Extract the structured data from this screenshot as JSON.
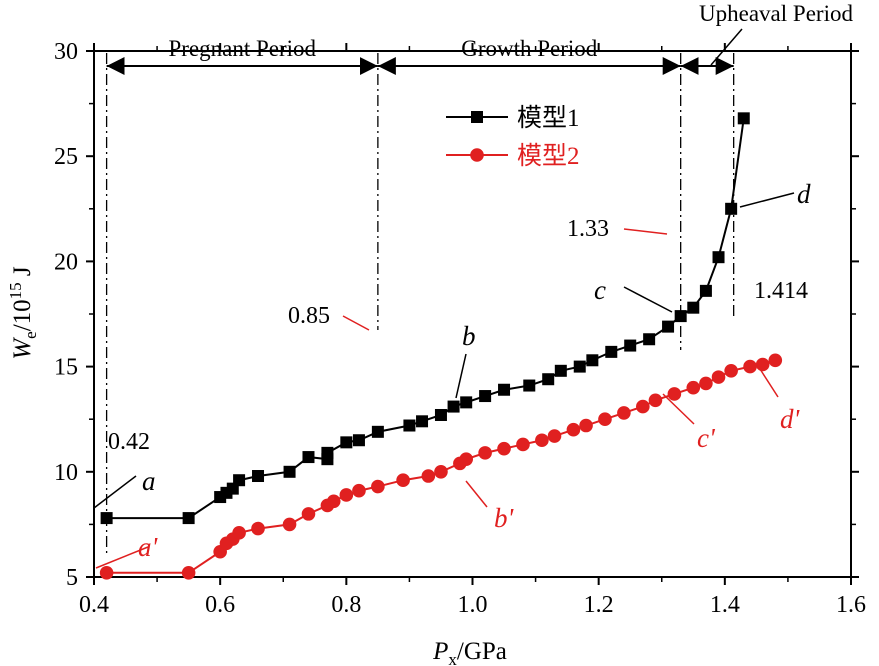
{
  "chart_data": {
    "type": "line",
    "xlabel": {
      "main": "P",
      "sub": "x",
      "rest": "/GPa"
    },
    "ylabel": {
      "main": "W",
      "sub": "e",
      "mid": "/10",
      "sup": "15",
      "rest": " J"
    },
    "xlim": [
      0.4,
      1.6
    ],
    "ylim": [
      5,
      30
    ],
    "x_ticks": [
      0.4,
      0.6,
      0.8,
      1.0,
      1.2,
      1.4,
      1.6
    ],
    "x_tick_labels": [
      "0.4",
      "0.6",
      "0.8",
      "1.0",
      "1.2",
      "1.4",
      "1.6"
    ],
    "y_ticks": [
      5,
      10,
      15,
      20,
      25,
      30
    ],
    "y_tick_labels": [
      "5",
      "10",
      "15",
      "20",
      "25",
      "30"
    ],
    "series": [
      {
        "name": "模型1",
        "color": "#000000",
        "marker": "square",
        "x": [
          0.42,
          0.55,
          0.6,
          0.61,
          0.62,
          0.63,
          0.66,
          0.71,
          0.74,
          0.77,
          0.77,
          0.8,
          0.82,
          0.85,
          0.9,
          0.92,
          0.95,
          0.97,
          0.99,
          1.02,
          1.05,
          1.09,
          1.12,
          1.14,
          1.17,
          1.19,
          1.22,
          1.25,
          1.28,
          1.31,
          1.33,
          1.35,
          1.37,
          1.39,
          1.41,
          1.43
        ],
        "y": [
          7.8,
          7.8,
          8.8,
          9.0,
          9.2,
          9.6,
          9.8,
          10.0,
          10.7,
          10.6,
          10.9,
          11.4,
          11.5,
          11.9,
          12.2,
          12.4,
          12.7,
          13.1,
          13.3,
          13.6,
          13.9,
          14.1,
          14.4,
          14.8,
          15.0,
          15.3,
          15.7,
          16.0,
          16.3,
          16.9,
          17.4,
          17.8,
          18.6,
          20.2,
          22.5,
          26.8
        ]
      },
      {
        "name": "模型2",
        "color": "#e02020",
        "marker": "circle",
        "x": [
          0.42,
          0.55,
          0.6,
          0.61,
          0.62,
          0.63,
          0.66,
          0.71,
          0.74,
          0.77,
          0.78,
          0.8,
          0.82,
          0.85,
          0.89,
          0.93,
          0.95,
          0.98,
          0.99,
          1.02,
          1.05,
          1.08,
          1.11,
          1.13,
          1.16,
          1.18,
          1.21,
          1.24,
          1.27,
          1.29,
          1.32,
          1.35,
          1.37,
          1.39,
          1.41,
          1.44,
          1.46,
          1.48
        ],
        "y": [
          5.2,
          5.2,
          6.2,
          6.6,
          6.8,
          7.1,
          7.3,
          7.5,
          8.0,
          8.4,
          8.6,
          8.9,
          9.1,
          9.3,
          9.6,
          9.8,
          10.0,
          10.4,
          10.6,
          10.9,
          11.1,
          11.3,
          11.5,
          11.7,
          12.0,
          12.2,
          12.5,
          12.8,
          13.1,
          13.4,
          13.7,
          14.0,
          14.2,
          14.5,
          14.8,
          15.0,
          15.1,
          15.3
        ]
      }
    ],
    "legend_position": "top-center",
    "period_boundaries": [
      0.42,
      0.85,
      1.33,
      1.414
    ],
    "periods": [
      "Pregnant Period",
      "Growth Period",
      "Upheaval Period"
    ],
    "annotations": [
      {
        "text": "0.42",
        "type": "value"
      },
      {
        "text": "0.85",
        "type": "value"
      },
      {
        "text": "1.33",
        "type": "value"
      },
      {
        "text": "1.414",
        "type": "value"
      },
      {
        "text": "a",
        "type": "letter",
        "color": "#000000"
      },
      {
        "text": "b",
        "type": "letter",
        "color": "#000000"
      },
      {
        "text": "c",
        "type": "letter",
        "color": "#000000"
      },
      {
        "text": "d",
        "type": "letter",
        "color": "#000000"
      },
      {
        "text": "a'",
        "type": "letter",
        "color": "#e02020"
      },
      {
        "text": "b'",
        "type": "letter",
        "color": "#e02020"
      },
      {
        "text": "c'",
        "type": "letter",
        "color": "#e02020"
      },
      {
        "text": "d'",
        "type": "letter",
        "color": "#e02020"
      }
    ]
  }
}
